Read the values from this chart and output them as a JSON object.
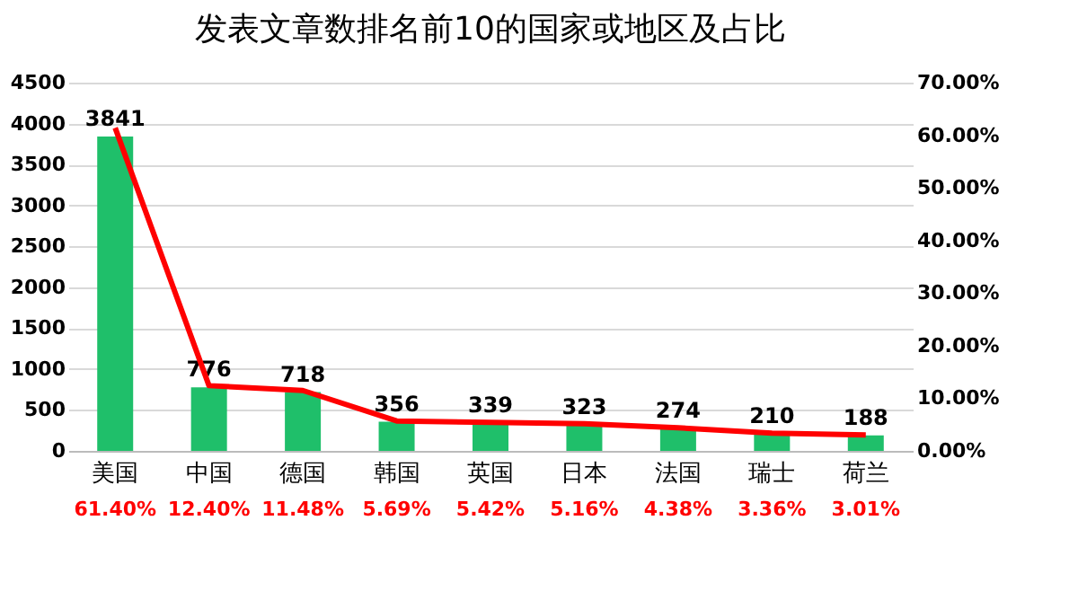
{
  "chart_data": {
    "type": "bar",
    "title": "发表文章数排名前10的国家或地区及占比",
    "categories": [
      "美国",
      "中国",
      "德国",
      "韩国",
      "英国",
      "日本",
      "法国",
      "瑞士",
      "荷兰"
    ],
    "series": [
      {
        "color": "#1fbf6a",
        "values": [
          3841,
          776,
          718,
          356,
          339,
          323,
          274,
          210,
          188
        ],
        "value_labels": [
          "3841",
          "776",
          "718",
          "356",
          "339",
          "323",
          "274",
          "210",
          "188"
        ]
      },
      {
        "type": "line",
        "axis": "y2",
        "color": "#ff0000",
        "values": [
          61.4,
          12.4,
          11.48,
          5.69,
          5.42,
          5.16,
          4.38,
          3.36,
          3.01
        ],
        "value_labels": [
          "61.40%",
          "12.40%",
          "11.48%",
          "5.69%",
          "5.42%",
          "5.16%",
          "4.38%",
          "3.36%",
          "3.01%"
        ]
      }
    ],
    "ylim": [
      0,
      4500
    ],
    "yticks": [
      0,
      500,
      1000,
      1500,
      2000,
      2500,
      3000,
      3500,
      4000,
      4500
    ],
    "y2lim": [
      0,
      70
    ],
    "y2ticks": [
      {
        "value": 0,
        "label": "0.00%"
      },
      {
        "value": 10,
        "label": "10.00%"
      },
      {
        "value": 20,
        "label": "20.00%"
      },
      {
        "value": 30,
        "label": "30.00%"
      },
      {
        "value": 40,
        "label": "40.00%"
      },
      {
        "value": 50,
        "label": "50.00%"
      },
      {
        "value": 60,
        "label": "60.00%"
      },
      {
        "value": 70,
        "label": "70.00%"
      }
    ],
    "grid": "y",
    "marker": "none",
    "line_style": "solid"
  }
}
